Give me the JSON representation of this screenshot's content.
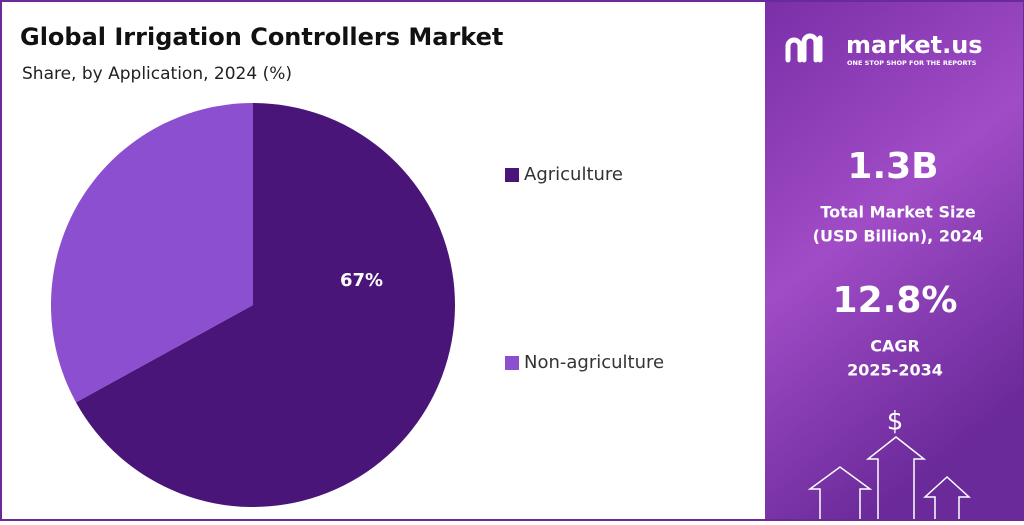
{
  "chart_data": {
    "type": "pie",
    "title": "Global Irrigation Controllers Market",
    "subtitle": "Share, by Application, 2024 (%)",
    "categories": [
      "Agriculture",
      "Non-agriculture"
    ],
    "values": [
      67,
      33
    ],
    "value_labels": [
      "67%",
      null
    ],
    "colors": [
      "#4a1578",
      "#8b4fcf"
    ],
    "legend": "right"
  },
  "panel": {
    "brand": "market.us",
    "tagline": "ONE STOP SHOP FOR THE REPORTS",
    "market_size": "1.3B",
    "market_size_label": [
      "Total Market Size",
      "(USD Billion), 2024"
    ],
    "cagr": "12.8%",
    "cagr_label": [
      "CAGR",
      "2025-2034"
    ],
    "icon": "$"
  }
}
